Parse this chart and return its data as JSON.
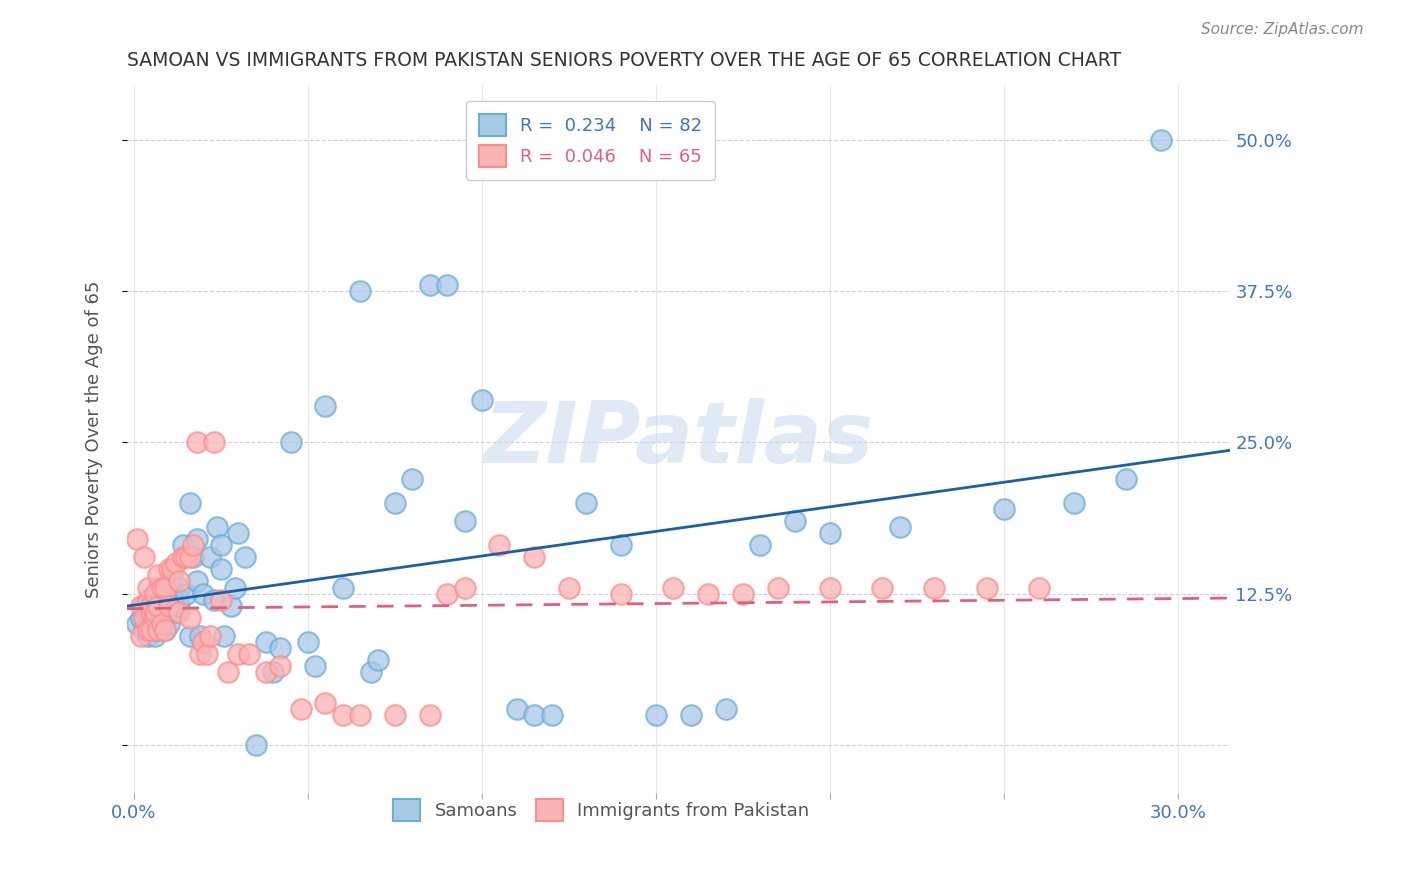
{
  "title": "SAMOAN VS IMMIGRANTS FROM PAKISTAN SENIORS POVERTY OVER THE AGE OF 65 CORRELATION CHART",
  "source": "Source: ZipAtlas.com",
  "xlabel": "",
  "ylabel": "Seniors Poverty Over the Age of 65",
  "x_ticks": [
    0.0,
    0.05,
    0.1,
    0.15,
    0.2,
    0.25,
    0.3
  ],
  "y_ticks": [
    0.0,
    0.125,
    0.25,
    0.375,
    0.5
  ],
  "y_tick_labels_right": [
    "",
    "12.5%",
    "25.0%",
    "37.5%",
    "50.0%"
  ],
  "xlim": [
    -0.002,
    0.315
  ],
  "ylim": [
    -0.04,
    0.545
  ],
  "watermark": "ZIPatlas",
  "samoans_x": [
    0.001,
    0.002,
    0.003,
    0.003,
    0.004,
    0.004,
    0.005,
    0.005,
    0.005,
    0.006,
    0.006,
    0.006,
    0.007,
    0.007,
    0.007,
    0.007,
    0.008,
    0.008,
    0.008,
    0.009,
    0.009,
    0.01,
    0.01,
    0.01,
    0.011,
    0.012,
    0.012,
    0.013,
    0.013,
    0.014,
    0.015,
    0.016,
    0.016,
    0.017,
    0.018,
    0.018,
    0.019,
    0.02,
    0.022,
    0.023,
    0.024,
    0.025,
    0.025,
    0.026,
    0.028,
    0.029,
    0.03,
    0.032,
    0.035,
    0.038,
    0.04,
    0.042,
    0.045,
    0.05,
    0.052,
    0.055,
    0.06,
    0.065,
    0.068,
    0.07,
    0.075,
    0.08,
    0.085,
    0.09,
    0.095,
    0.1,
    0.11,
    0.115,
    0.12,
    0.13,
    0.14,
    0.15,
    0.16,
    0.17,
    0.18,
    0.19,
    0.2,
    0.22,
    0.25,
    0.27,
    0.285,
    0.295
  ],
  "samoans_y": [
    0.1,
    0.105,
    0.095,
    0.115,
    0.09,
    0.11,
    0.1,
    0.095,
    0.115,
    0.105,
    0.09,
    0.12,
    0.1,
    0.115,
    0.095,
    0.13,
    0.11,
    0.1,
    0.12,
    0.115,
    0.095,
    0.125,
    0.1,
    0.115,
    0.14,
    0.11,
    0.125,
    0.13,
    0.115,
    0.165,
    0.125,
    0.2,
    0.09,
    0.155,
    0.17,
    0.135,
    0.09,
    0.125,
    0.155,
    0.12,
    0.18,
    0.145,
    0.165,
    0.09,
    0.115,
    0.13,
    0.175,
    0.155,
    0.0,
    0.085,
    0.06,
    0.08,
    0.25,
    0.085,
    0.065,
    0.28,
    0.13,
    0.375,
    0.06,
    0.07,
    0.2,
    0.22,
    0.38,
    0.38,
    0.185,
    0.285,
    0.03,
    0.025,
    0.025,
    0.2,
    0.165,
    0.025,
    0.025,
    0.03,
    0.165,
    0.185,
    0.175,
    0.18,
    0.195,
    0.2,
    0.22,
    0.5
  ],
  "pakistan_x": [
    0.001,
    0.002,
    0.002,
    0.003,
    0.003,
    0.004,
    0.004,
    0.004,
    0.005,
    0.005,
    0.005,
    0.006,
    0.006,
    0.006,
    0.007,
    0.007,
    0.007,
    0.008,
    0.008,
    0.009,
    0.009,
    0.01,
    0.01,
    0.011,
    0.012,
    0.013,
    0.013,
    0.014,
    0.015,
    0.016,
    0.016,
    0.017,
    0.018,
    0.019,
    0.02,
    0.021,
    0.022,
    0.023,
    0.025,
    0.027,
    0.03,
    0.033,
    0.038,
    0.042,
    0.048,
    0.055,
    0.06,
    0.065,
    0.075,
    0.085,
    0.09,
    0.095,
    0.105,
    0.115,
    0.125,
    0.14,
    0.155,
    0.165,
    0.175,
    0.185,
    0.2,
    0.215,
    0.23,
    0.245,
    0.26
  ],
  "pakistan_y": [
    0.17,
    0.09,
    0.115,
    0.105,
    0.155,
    0.12,
    0.13,
    0.095,
    0.11,
    0.095,
    0.115,
    0.105,
    0.125,
    0.11,
    0.115,
    0.095,
    0.14,
    0.13,
    0.1,
    0.13,
    0.095,
    0.145,
    0.115,
    0.145,
    0.15,
    0.135,
    0.11,
    0.155,
    0.155,
    0.155,
    0.105,
    0.165,
    0.25,
    0.075,
    0.085,
    0.075,
    0.09,
    0.25,
    0.12,
    0.06,
    0.075,
    0.075,
    0.06,
    0.065,
    0.03,
    0.035,
    0.025,
    0.025,
    0.025,
    0.025,
    0.125,
    0.13,
    0.165,
    0.155,
    0.13,
    0.125,
    0.13,
    0.125,
    0.125,
    0.13,
    0.13,
    0.13,
    0.13,
    0.13,
    0.13
  ],
  "blue_color": "#6baed6",
  "pink_color": "#fc8d8d",
  "blue_fill": "#a8c8e8",
  "pink_fill": "#fbb4b4",
  "trend_blue_color": "#1a5fa8",
  "trend_pink_color": "#e06080",
  "background_color": "#ffffff",
  "grid_color": "#d0d0d0",
  "title_color": "#333333",
  "right_label_color": "#4472c4",
  "ylabel_color": "#555555"
}
